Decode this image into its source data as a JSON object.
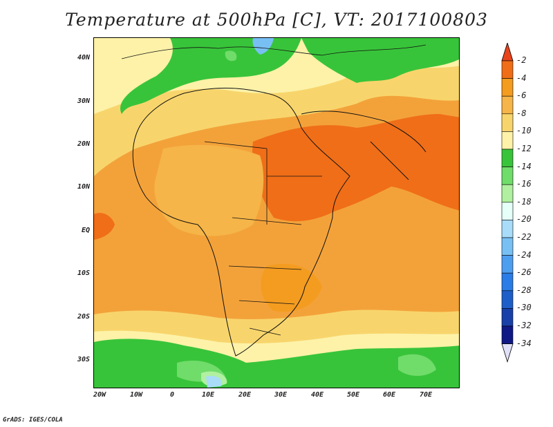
{
  "title": "Temperature at 500hPa [C], VT: 2017100803",
  "lat_labels": [
    "40N",
    "30N",
    "20N",
    "10N",
    "EQ",
    "10S",
    "20S",
    "30S"
  ],
  "lon_labels": [
    "20W",
    "10W",
    "0",
    "10E",
    "20E",
    "30E",
    "40E",
    "50E",
    "60E",
    "70E"
  ],
  "colorbar": {
    "levels": [
      "-2",
      "-4",
      "-6",
      "-8",
      "-10",
      "-12",
      "-14",
      "-16",
      "-18",
      "-20",
      "-22",
      "-24",
      "-26",
      "-28",
      "-30",
      "-32",
      "-34"
    ],
    "colors": [
      "#e8441c",
      "#f06e18",
      "#f39c20",
      "#f5b548",
      "#f8d56c",
      "#fdf2a8",
      "#38c43a",
      "#70dc6a",
      "#b0f0a0",
      "#e6fff8",
      "#a8dcf8",
      "#78c0f4",
      "#4e9ef0",
      "#2a7ce6",
      "#1e5ec8",
      "#1840a8",
      "#101886",
      "#e0e0f8"
    ]
  },
  "footer": "GrADS: IGES/COLA"
}
